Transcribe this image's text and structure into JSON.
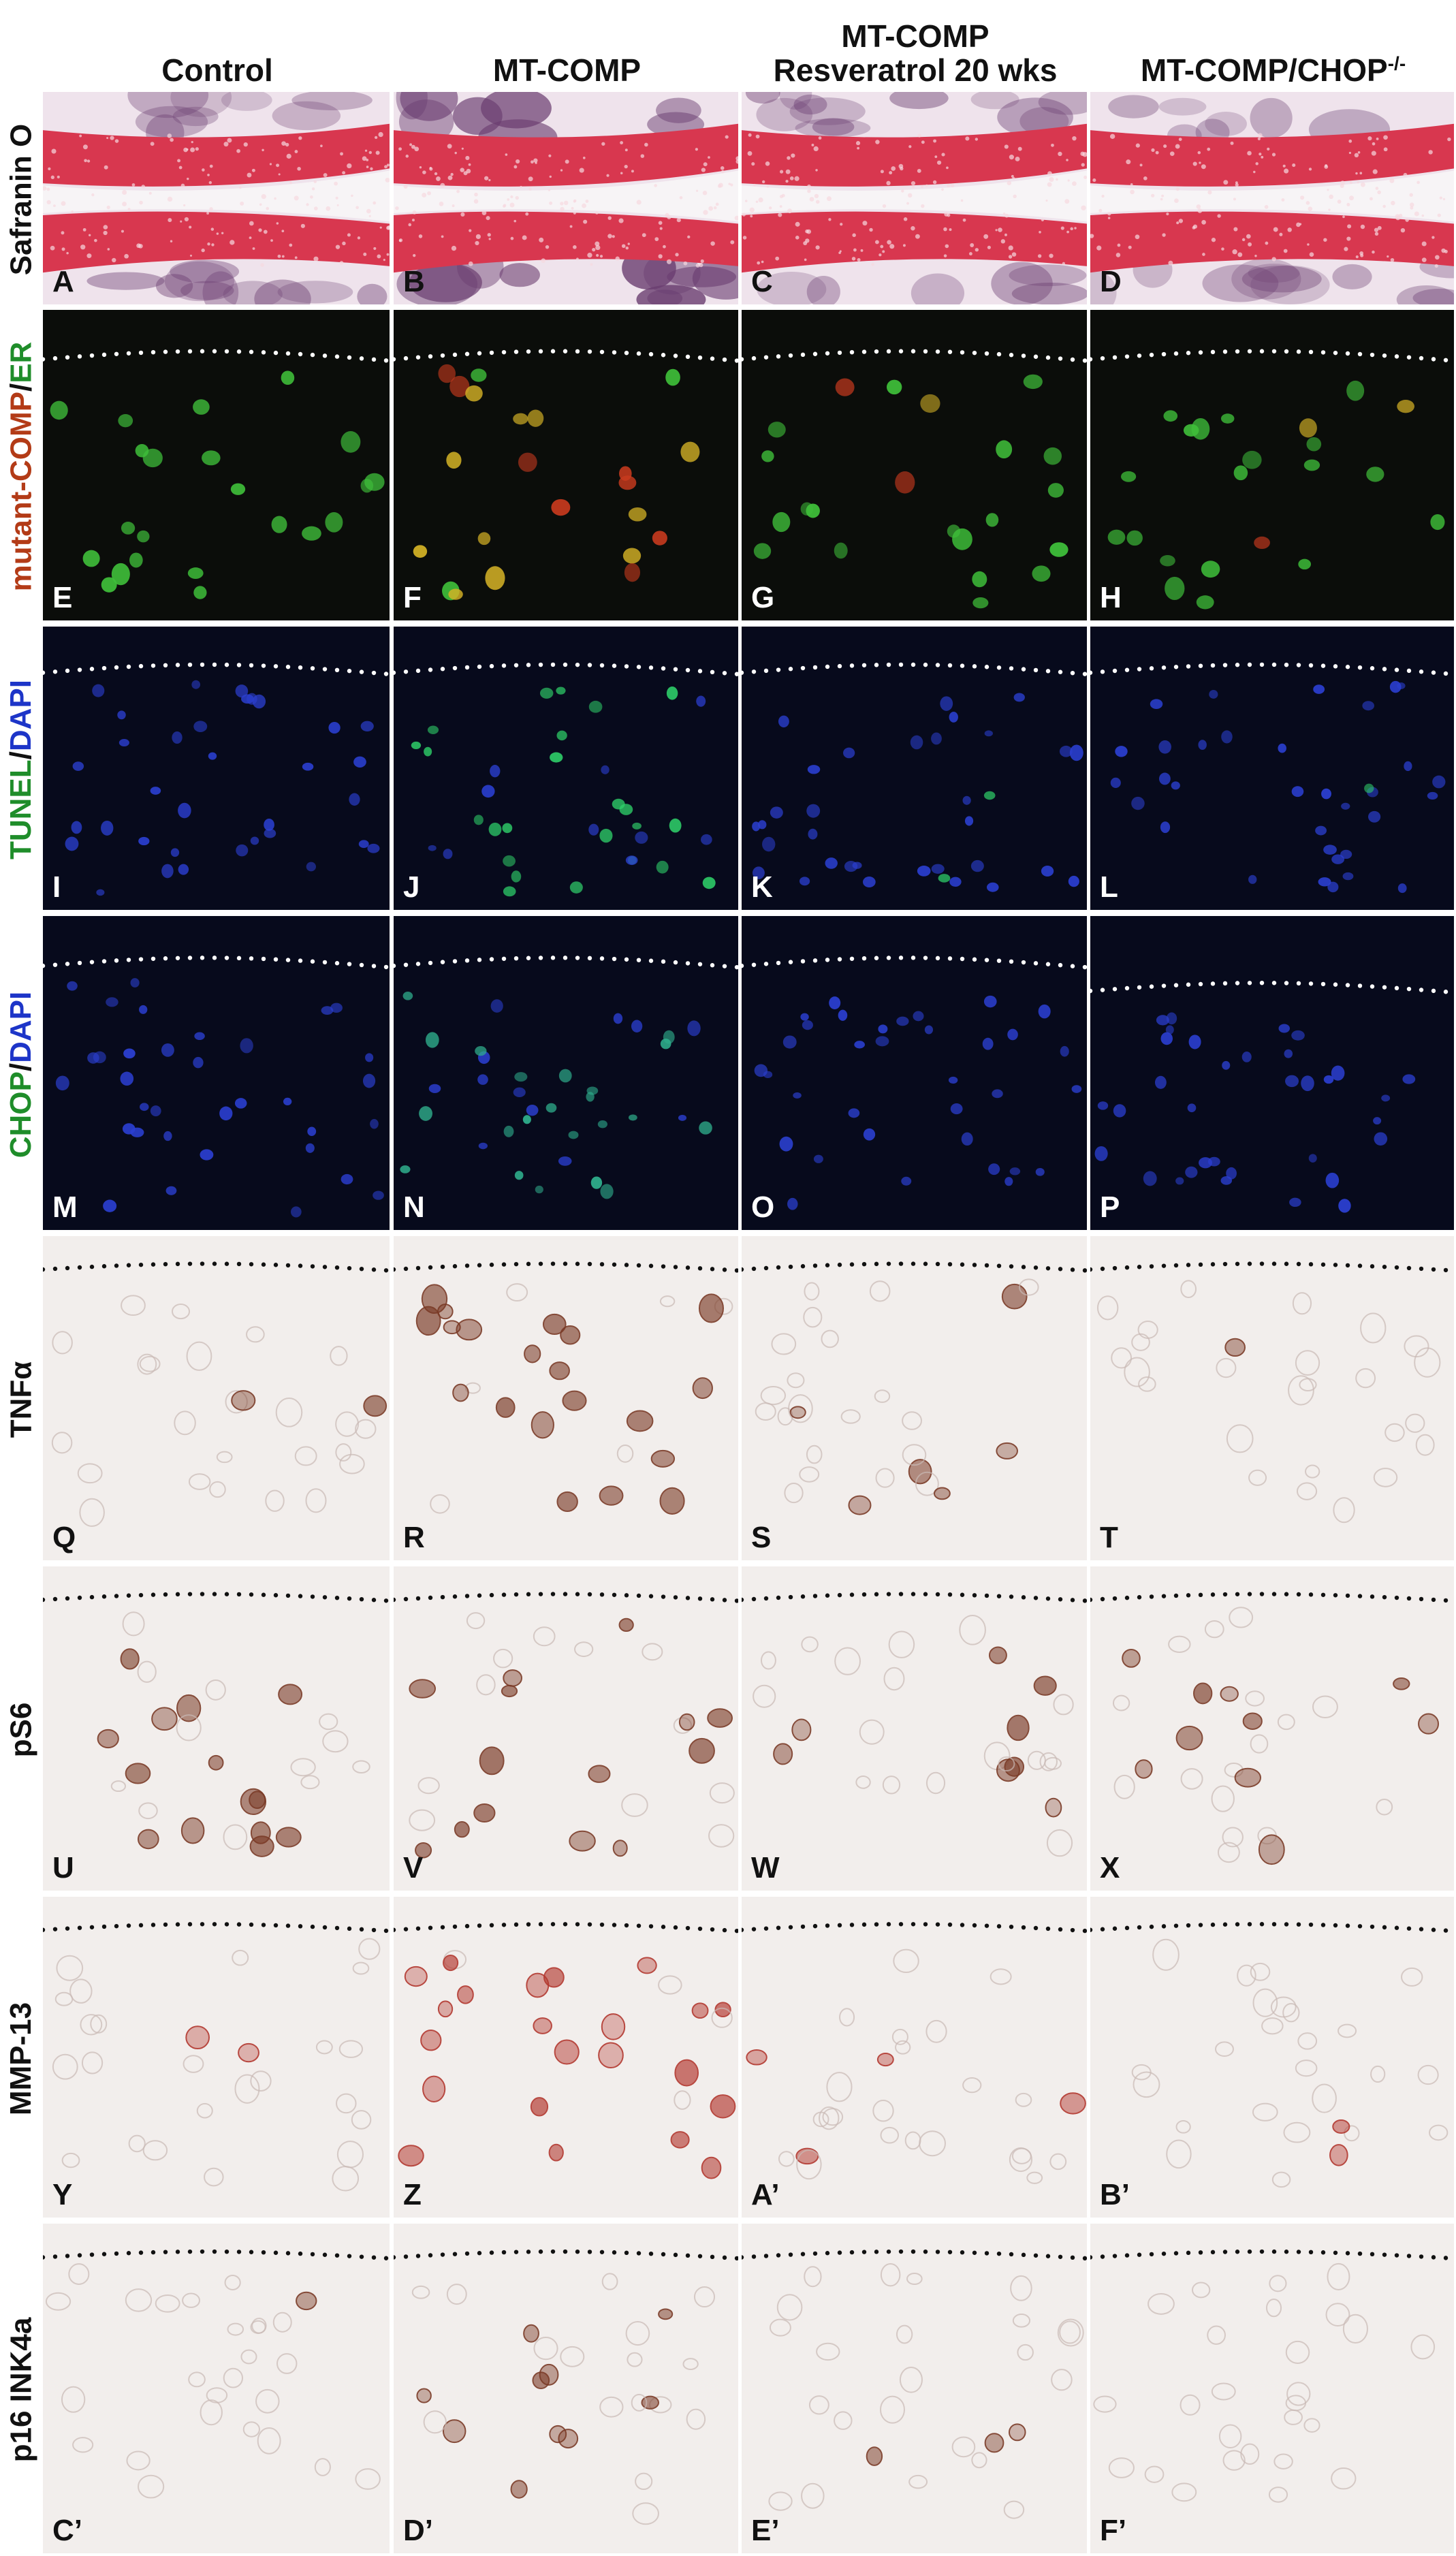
{
  "columns": [
    {
      "line1": "",
      "line2": "Control"
    },
    {
      "line1": "",
      "line2": "MT-COMP"
    },
    {
      "line1": "MT-COMP",
      "line2": "Resveratrol 20 wks"
    },
    {
      "line1": "",
      "line2": "MT-COMP/CHOP",
      "sup": "-/-"
    }
  ],
  "rows": [
    {
      "type": "safranin",
      "label_parts": [
        {
          "text": "Safranin O",
          "color": "dark"
        }
      ],
      "panels": [
        "A",
        "B",
        "C",
        "D"
      ]
    },
    {
      "type": "fluor-er",
      "label_parts": [
        {
          "text": "mutant-COMP",
          "color": "red"
        },
        {
          "text": "/",
          "color": "dark"
        },
        {
          "text": "ER",
          "color": "green"
        }
      ],
      "panels": [
        "E",
        "F",
        "G",
        "H"
      ]
    },
    {
      "type": "fluor-tunel",
      "label_parts": [
        {
          "text": "TUNEL",
          "color": "green"
        },
        {
          "text": "/",
          "color": "dark"
        },
        {
          "text": "DAPI",
          "color": "blue"
        }
      ],
      "panels": [
        "I",
        "J",
        "K",
        "L"
      ]
    },
    {
      "type": "fluor-chop",
      "label_parts": [
        {
          "text": "CHOP",
          "color": "green"
        },
        {
          "text": "/",
          "color": "dark"
        },
        {
          "text": "DAPI",
          "color": "blue"
        }
      ],
      "panels": [
        "M",
        "N",
        "O",
        "P"
      ]
    },
    {
      "type": "ihc",
      "label_parts": [
        {
          "text": "TNFα",
          "color": "dark"
        }
      ],
      "panels": [
        "Q",
        "R",
        "S",
        "T"
      ]
    },
    {
      "type": "ihc",
      "label_parts": [
        {
          "text": "pS6",
          "color": "dark"
        }
      ],
      "panels": [
        "U",
        "V",
        "W",
        "X"
      ]
    },
    {
      "type": "ihc",
      "label_parts": [
        {
          "text": "MMP-13",
          "color": "dark"
        }
      ],
      "panels": [
        "Y",
        "Z",
        "A’",
        "B’"
      ]
    },
    {
      "type": "ihc",
      "label_parts": [
        {
          "text": "p16 INK4a",
          "color": "dark"
        }
      ],
      "panels": [
        "C’",
        "D’",
        "E’",
        "F’"
      ]
    }
  ],
  "colors": {
    "safranin_bg": "#efe3ec",
    "safranin_red": "#d8374f",
    "marrow": "#6a3d70",
    "fluor_bg": "#0b0d0a",
    "fluor_bg_blue": "#070a1c",
    "er_green": "#3fbf3a",
    "comp_red": "#c83a1e",
    "dapi_blue": "#2b3fd0",
    "tunel_green": "#2fd16a",
    "ihc_bg": "#f2eeec",
    "ihc_brown": "#7a3a26",
    "ihc_red": "#b2372e",
    "dotted_white": "#ffffff",
    "dotted_black": "#111111"
  },
  "signal_levels": {
    "er_red": [
      0.0,
      0.8,
      0.1,
      0.15
    ],
    "tunel_green": [
      0.0,
      0.7,
      0.05,
      0.02
    ],
    "chop_green": [
      0.0,
      0.6,
      0.0,
      0.0
    ],
    "tnf": [
      0.05,
      0.75,
      0.2,
      0.02
    ],
    "ps6": [
      0.35,
      0.55,
      0.3,
      0.35
    ],
    "mmp13": [
      0.1,
      0.9,
      0.1,
      0.25
    ],
    "p16": [
      0.05,
      0.35,
      0.08,
      0.03
    ]
  }
}
